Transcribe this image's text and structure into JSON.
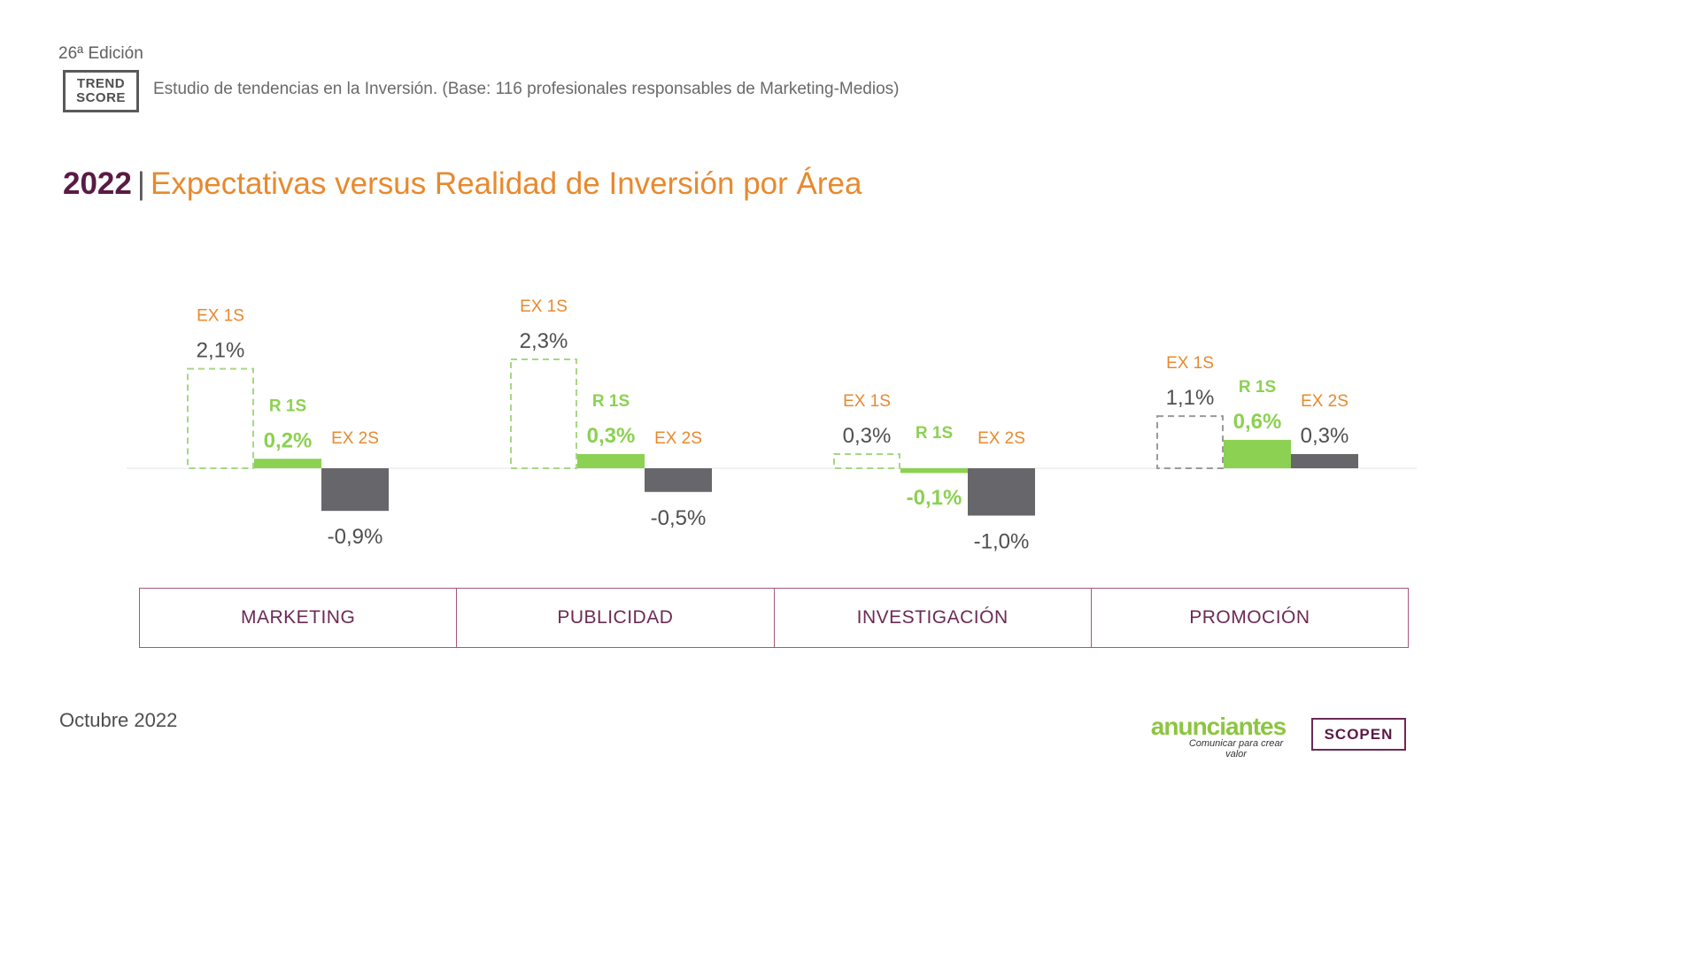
{
  "header": {
    "edition": "26ª Edición",
    "logo_line1": "TREND",
    "logo_line2": "SCORE",
    "study": "Estudio de tendencias en la Inversión. (Base: 116 profesionales responsables de Marketing-Medios)"
  },
  "title": {
    "year": "2022",
    "separator": "|",
    "text": "Expectativas versus Realidad de Inversión por Área"
  },
  "colors": {
    "ex1s_dashed_green": "#a6d785",
    "ex1s_dashed_grey": "#9a9a9a",
    "r1s_green": "#8cd152",
    "ex2s_grey": "#67666b",
    "orange": "#e8892e",
    "plum": "#6b2a55"
  },
  "chart_data": {
    "type": "bar",
    "categories": [
      "MARKETING",
      "PUBLICIDAD",
      "INVESTIGACIÓN",
      "PROMOCIÓN"
    ],
    "series": [
      {
        "name": "EX 1S",
        "values": [
          2.1,
          2.3,
          0.3,
          1.1
        ],
        "labels": [
          "2,1%",
          "2,3%",
          "0,3%",
          "1,1%"
        ]
      },
      {
        "name": "R 1S",
        "values": [
          0.2,
          0.3,
          -0.1,
          0.6
        ],
        "labels": [
          "0,2%",
          "0,3%",
          "-0,1%",
          "0,6%"
        ]
      },
      {
        "name": "EX 2S",
        "values": [
          -0.9,
          -0.5,
          -1.0,
          0.3
        ],
        "labels": [
          "-0,9%",
          "-0,5%",
          "-1,0%",
          "0,3%"
        ]
      }
    ],
    "unit": "%",
    "grid": false,
    "legend": "none"
  },
  "footer": {
    "date": "Octubre 2022",
    "anunciantes": "anunciantes",
    "anunciantes_tagline": "Comunicar para crear valor",
    "scopen": "SCOPEN"
  }
}
